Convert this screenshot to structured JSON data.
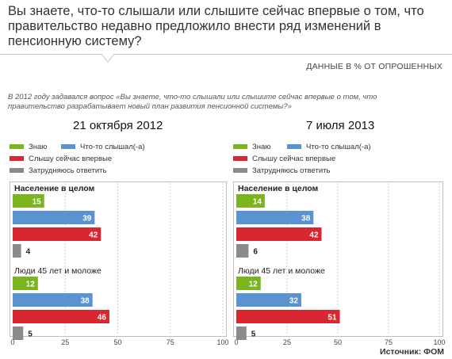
{
  "header": {
    "question": "Вы знаете, что-то слышали или слышите сейчас впервые о том, что правительство недавно предложило внести ряд изменений в пенсионную систему?",
    "unit_note": "ДАННЫЕ В % ОТ ОПРОШЕННЫХ",
    "context": "В 2012 году задавался вопрос «Вы знаете, что-то слышали или слышите сейчас впервые о том, что правительство разрабатывает новый план развития пенсионной системы?»"
  },
  "footer": {
    "source": "Источник: ФОМ"
  },
  "colors": {
    "know": "#7ab520",
    "heard": "#5a93d0",
    "first_time": "#d92732",
    "hard": "#8a8a8a"
  },
  "legend": [
    {
      "key": "know",
      "label": "Знаю"
    },
    {
      "key": "heard",
      "label": "Что-то слышал(-а)"
    },
    {
      "key": "first_time",
      "label": "Слышу сейчас впервые"
    },
    {
      "key": "hard",
      "label": "Затрудняюсь ответить"
    }
  ],
  "chart_data": [
    {
      "type": "bar",
      "title": "21 октября 2012",
      "xlim": [
        0,
        100
      ],
      "xticks": [
        0,
        25,
        50,
        75,
        100
      ],
      "groups": [
        {
          "name": "Население в целом",
          "bold": true,
          "values": [
            {
              "key": "know",
              "value": 15
            },
            {
              "key": "heard",
              "value": 39
            },
            {
              "key": "first_time",
              "value": 42
            },
            {
              "key": "hard",
              "value": 4
            }
          ]
        },
        {
          "name": "Люди 45 лет и моложе",
          "bold": false,
          "values": [
            {
              "key": "know",
              "value": 12
            },
            {
              "key": "heard",
              "value": 38
            },
            {
              "key": "first_time",
              "value": 46
            },
            {
              "key": "hard",
              "value": 5
            }
          ]
        }
      ]
    },
    {
      "type": "bar",
      "title": "7 июля 2013",
      "xlim": [
        0,
        100
      ],
      "xticks": [
        0,
        25,
        50,
        75,
        100
      ],
      "groups": [
        {
          "name": "Население в целом",
          "bold": true,
          "values": [
            {
              "key": "know",
              "value": 14
            },
            {
              "key": "heard",
              "value": 38
            },
            {
              "key": "first_time",
              "value": 42
            },
            {
              "key": "hard",
              "value": 6
            }
          ]
        },
        {
          "name": "Люди 45 лет и моложе",
          "bold": false,
          "values": [
            {
              "key": "know",
              "value": 12
            },
            {
              "key": "heard",
              "value": 32
            },
            {
              "key": "first_time",
              "value": 51
            },
            {
              "key": "hard",
              "value": 5
            }
          ]
        }
      ]
    }
  ]
}
